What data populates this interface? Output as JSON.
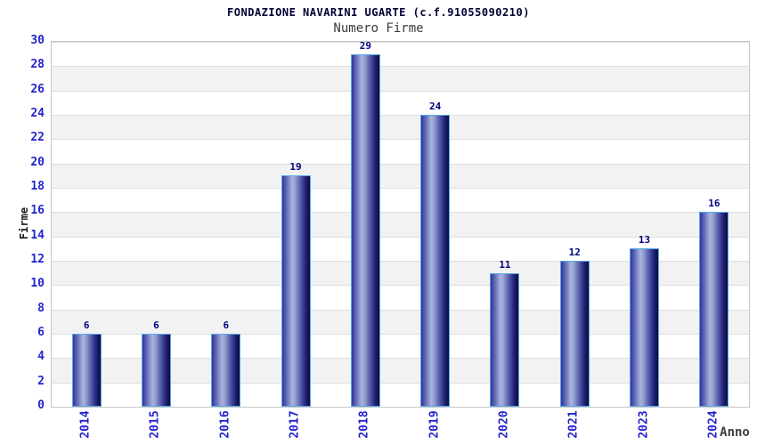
{
  "chart_data": {
    "type": "bar",
    "title": "FONDAZIONE NAVARINI UGARTE (c.f.91055090210)",
    "subtitle": "Numero Firme",
    "xlabel": "Anno",
    "ylabel": "Firme",
    "categories": [
      "2014",
      "2015",
      "2016",
      "2017",
      "2018",
      "2019",
      "2020",
      "2021",
      "2023",
      "2024"
    ],
    "values": [
      6,
      6,
      6,
      19,
      29,
      24,
      11,
      12,
      13,
      16
    ],
    "ylim": [
      0,
      30
    ],
    "ytick_step": 2,
    "grid": true,
    "legend_position": "none",
    "colors": {
      "tick_label": "#2323cd",
      "value_label": "#00007d",
      "title": "#000033",
      "subtitle": "#3c3c3c",
      "axis_label": "#1a1a1a",
      "xlabel_text": "#3f3f3f",
      "bar_border": "#55a9e8",
      "bar_gradient_stops": [
        "#32329e 0%",
        "#6a74ba 18%",
        "#aab4de 36%",
        "#98a2d2 46%",
        "#6770b2 60%",
        "#3a3e98 75%",
        "#1b1b66 88%",
        "#0e0e3d 100%"
      ],
      "band_alt": "#f2f2f2",
      "band_main": "#ffffff",
      "gridline": "#dedede",
      "frame": "#c6c6c6",
      "background": "#ffffff"
    }
  }
}
